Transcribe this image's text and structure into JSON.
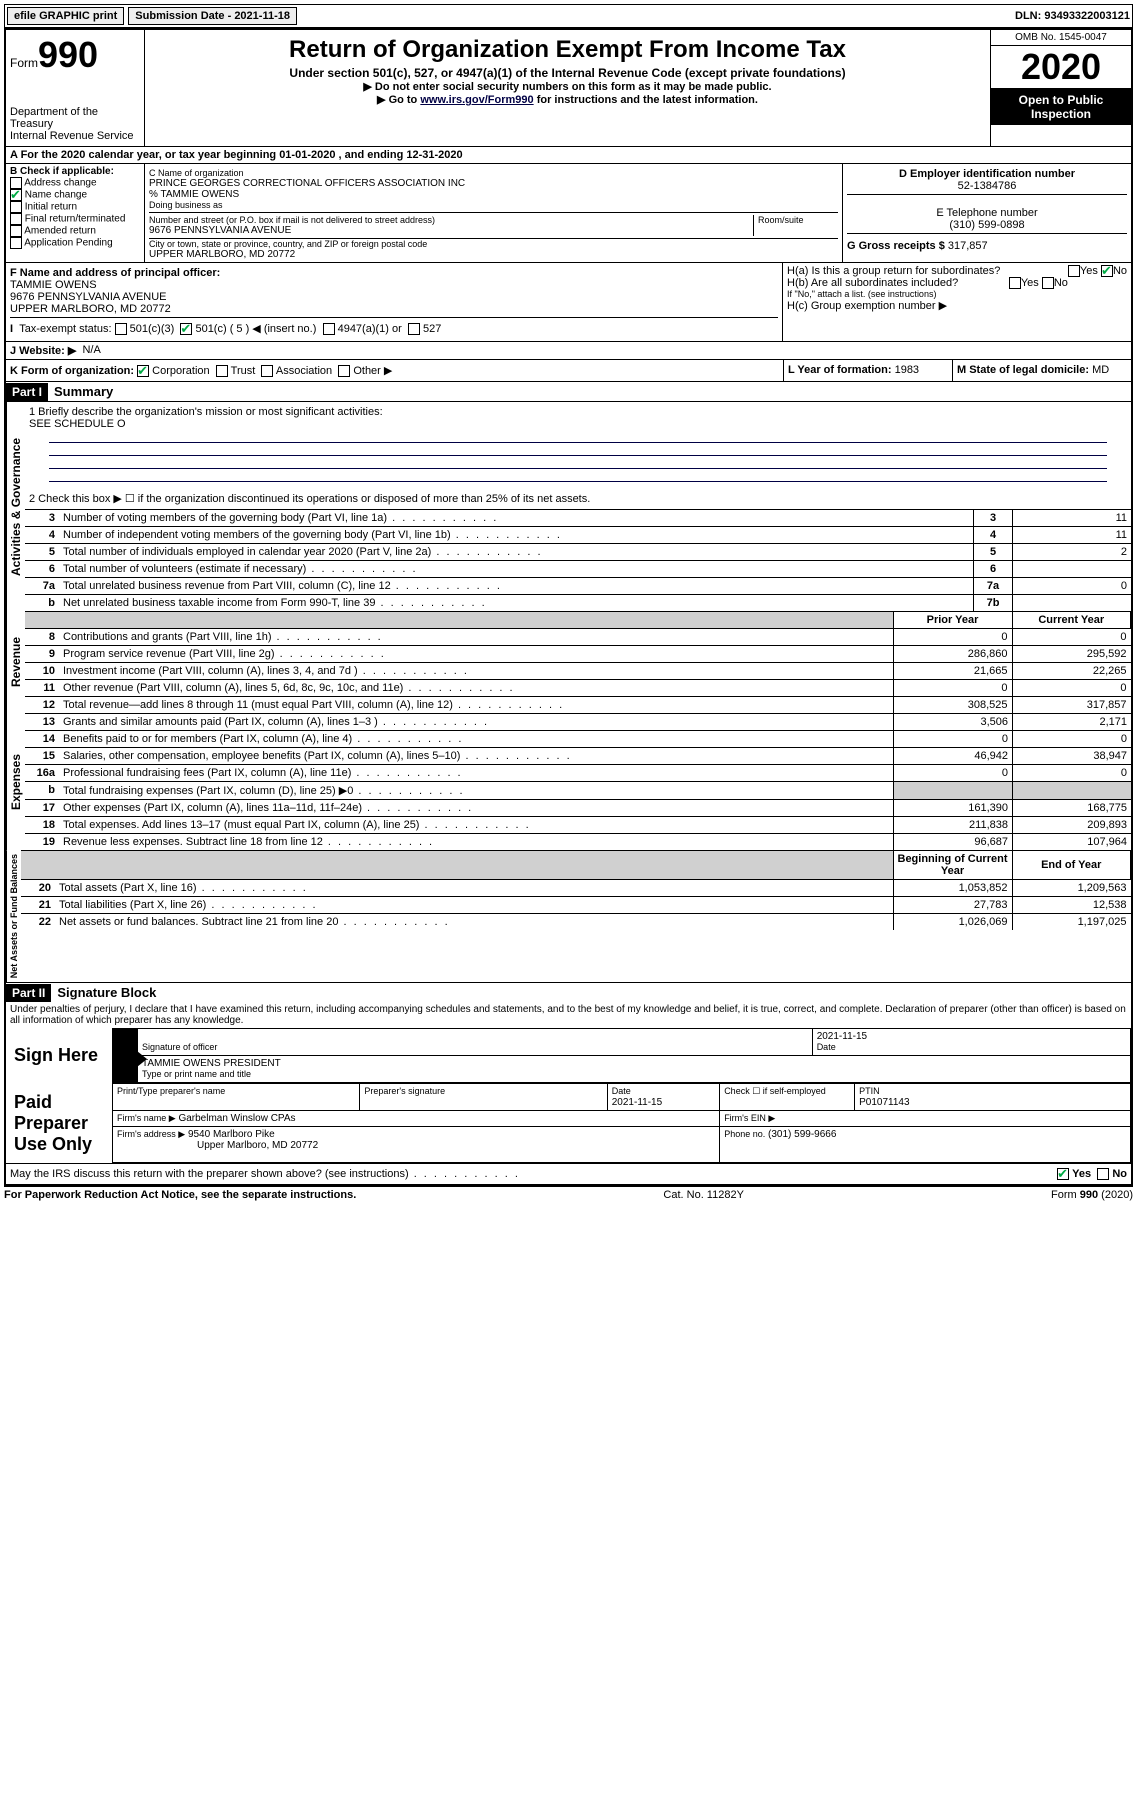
{
  "topbar": {
    "efile": "efile GRAPHIC print",
    "submission_label": "Submission Date - 2021-11-18",
    "dln": "DLN: 93493322003121"
  },
  "header": {
    "form_prefix": "Form",
    "form_num": "990",
    "dept": "Department of the Treasury",
    "irs": "Internal Revenue Service",
    "title": "Return of Organization Exempt From Income Tax",
    "sub": "Under section 501(c), 527, or 4947(a)(1) of the Internal Revenue Code (except private foundations)",
    "line1": "▶ Do not enter social security numbers on this form as it may be made public.",
    "line2_pre": "▶ Go to ",
    "line2_link": "www.irs.gov/Form990",
    "line2_post": " for instructions and the latest information.",
    "omb": "OMB No. 1545-0047",
    "year": "2020",
    "open": "Open to Public Inspection"
  },
  "periodA": "A For the 2020 calendar year, or tax year beginning 01-01-2020   , and ending 12-31-2020",
  "B": {
    "label": "B Check if applicable:",
    "items": [
      "Address change",
      "Name change",
      "Initial return",
      "Final return/terminated",
      "Amended return",
      "Application Pending"
    ],
    "checked_idx": 1
  },
  "C": {
    "name_label": "C Name of organization",
    "name": "PRINCE GEORGES CORRECTIONAL OFFICERS ASSOCIATION INC",
    "care": "% TAMMIE OWENS",
    "dba_label": "Doing business as",
    "street_label": "Number and street (or P.O. box if mail is not delivered to street address)",
    "room_label": "Room/suite",
    "street": "9676 PENNSYLVANIA AVENUE",
    "city_label": "City or town, state or province, country, and ZIP or foreign postal code",
    "city": "UPPER MARLBORO, MD  20772"
  },
  "D": {
    "label": "D Employer identification number",
    "val": "52-1384786"
  },
  "E": {
    "label": "E Telephone number",
    "val": "(310) 599-0898"
  },
  "G": {
    "label": "G Gross receipts $",
    "val": "317,857"
  },
  "F": {
    "label": "F Name and address of principal officer:",
    "name": "TAMMIE OWENS",
    "addr1": "9676 PENNSYLVANIA AVENUE",
    "addr2": "UPPER MARLBORO, MD  20772"
  },
  "H": {
    "a": "H(a)  Is this a group return for subordinates?",
    "b": "H(b)  Are all subordinates included?",
    "b_note": "If \"No,\" attach a list. (see instructions)",
    "c": "H(c)  Group exemption number ▶"
  },
  "I": {
    "label": "Tax-exempt status:",
    "o1": "501(c)(3)",
    "o2": "501(c) ( 5 ) ◀ (insert no.)",
    "o3": "4947(a)(1) or",
    "o4": "527"
  },
  "J": {
    "label": "J   Website: ▶",
    "val": "N/A"
  },
  "K": {
    "label": "K Form of organization:",
    "opts": [
      "Corporation",
      "Trust",
      "Association",
      "Other ▶"
    ]
  },
  "L": {
    "label": "L Year of formation:",
    "val": "1983"
  },
  "M": {
    "label": "M State of legal domicile:",
    "val": "MD"
  },
  "part1": {
    "header": "Part I",
    "title": "Summary"
  },
  "summary": {
    "l1": "1  Briefly describe the organization's mission or most significant activities:",
    "l1v": "SEE SCHEDULE O",
    "l2": "2   Check this box ▶ ☐  if the organization discontinued its operations or disposed of more than 25% of its net assets.",
    "rows_top": [
      {
        "n": "3",
        "t": "Number of voting members of the governing body (Part VI, line 1a)",
        "b": "3",
        "v": "11"
      },
      {
        "n": "4",
        "t": "Number of independent voting members of the governing body (Part VI, line 1b)",
        "b": "4",
        "v": "11"
      },
      {
        "n": "5",
        "t": "Total number of individuals employed in calendar year 2020 (Part V, line 2a)",
        "b": "5",
        "v": "2"
      },
      {
        "n": "6",
        "t": "Total number of volunteers (estimate if necessary)",
        "b": "6",
        "v": ""
      },
      {
        "n": "7a",
        "t": "Total unrelated business revenue from Part VIII, column (C), line 12",
        "b": "7a",
        "v": "0"
      },
      {
        "n": "b",
        "t": "Net unrelated business taxable income from Form 990-T, line 39",
        "b": "7b",
        "v": ""
      }
    ],
    "col_prior": "Prior Year",
    "col_curr": "Current Year",
    "revenue": [
      {
        "n": "8",
        "t": "Contributions and grants (Part VIII, line 1h)",
        "p": "0",
        "c": "0"
      },
      {
        "n": "9",
        "t": "Program service revenue (Part VIII, line 2g)",
        "p": "286,860",
        "c": "295,592"
      },
      {
        "n": "10",
        "t": "Investment income (Part VIII, column (A), lines 3, 4, and 7d )",
        "p": "21,665",
        "c": "22,265"
      },
      {
        "n": "11",
        "t": "Other revenue (Part VIII, column (A), lines 5, 6d, 8c, 9c, 10c, and 11e)",
        "p": "0",
        "c": "0"
      },
      {
        "n": "12",
        "t": "Total revenue—add lines 8 through 11 (must equal Part VIII, column (A), line 12)",
        "p": "308,525",
        "c": "317,857"
      }
    ],
    "expenses": [
      {
        "n": "13",
        "t": "Grants and similar amounts paid (Part IX, column (A), lines 1–3 )",
        "p": "3,506",
        "c": "2,171"
      },
      {
        "n": "14",
        "t": "Benefits paid to or for members (Part IX, column (A), line 4)",
        "p": "0",
        "c": "0"
      },
      {
        "n": "15",
        "t": "Salaries, other compensation, employee benefits (Part IX, column (A), lines 5–10)",
        "p": "46,942",
        "c": "38,947"
      },
      {
        "n": "16a",
        "t": "Professional fundraising fees (Part IX, column (A), line 11e)",
        "p": "0",
        "c": "0"
      },
      {
        "n": "b",
        "t": "Total fundraising expenses (Part IX, column (D), line 25) ▶0",
        "p": "grey",
        "c": "grey"
      },
      {
        "n": "17",
        "t": "Other expenses (Part IX, column (A), lines 11a–11d, 11f–24e)",
        "p": "161,390",
        "c": "168,775"
      },
      {
        "n": "18",
        "t": "Total expenses. Add lines 13–17 (must equal Part IX, column (A), line 25)",
        "p": "211,838",
        "c": "209,893"
      },
      {
        "n": "19",
        "t": "Revenue less expenses. Subtract line 18 from line 12",
        "p": "96,687",
        "c": "107,964"
      }
    ],
    "col_begin": "Beginning of Current Year",
    "col_end": "End of Year",
    "net": [
      {
        "n": "20",
        "t": "Total assets (Part X, line 16)",
        "p": "1,053,852",
        "c": "1,209,563"
      },
      {
        "n": "21",
        "t": "Total liabilities (Part X, line 26)",
        "p": "27,783",
        "c": "12,538"
      },
      {
        "n": "22",
        "t": "Net assets or fund balances. Subtract line 21 from line 20",
        "p": "1,026,069",
        "c": "1,197,025"
      }
    ]
  },
  "vbands": {
    "gov": "Activities & Governance",
    "rev": "Revenue",
    "exp": "Expenses",
    "net": "Net Assets or Fund Balances"
  },
  "part2": {
    "header": "Part II",
    "title": "Signature Block"
  },
  "perjury": "Under penalties of perjury, I declare that I have examined this return, including accompanying schedules and statements, and to the best of my knowledge and belief, it is true, correct, and complete. Declaration of preparer (other than officer) is based on all information of which preparer has any knowledge.",
  "sign": {
    "here": "Sign Here",
    "sig_label": "Signature of officer",
    "date_label": "Date",
    "date": "2021-11-15",
    "name": "TAMMIE OWENS PRESIDENT",
    "name_label": "Type or print name and title"
  },
  "paid": {
    "title": "Paid Preparer Use Only",
    "h1": "Print/Type preparer's name",
    "h2": "Preparer's signature",
    "h3": "Date",
    "h3v": "2021-11-15",
    "h4": "Check ☐ if self-employed",
    "h5": "PTIN",
    "h5v": "P01071143",
    "firm_label": "Firm's name    ▶",
    "firm": "Garbelman Winslow CPAs",
    "ein_label": "Firm's EIN ▶",
    "addr_label": "Firm's address ▶",
    "addr1": "9540 Marlboro Pike",
    "addr2": "Upper Marlboro, MD  20772",
    "phone_label": "Phone no.",
    "phone": "(301) 599-9666"
  },
  "discuss": "May the IRS discuss this return with the preparer shown above? (see instructions)",
  "yes": "Yes",
  "no": "No",
  "footer": {
    "left": "For Paperwork Reduction Act Notice, see the separate instructions.",
    "mid": "Cat. No. 11282Y",
    "right": "Form 990 (2020)"
  }
}
